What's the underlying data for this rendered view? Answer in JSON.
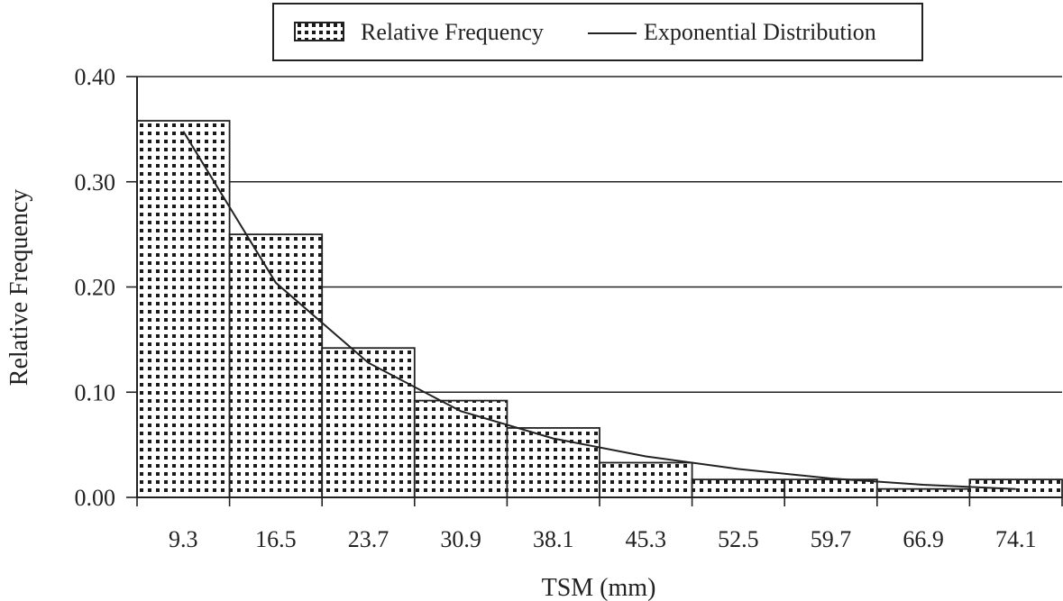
{
  "chart_data": {
    "type": "bar",
    "categories": [
      "9.3",
      "16.5",
      "23.7",
      "30.9",
      "38.1",
      "45.3",
      "52.5",
      "59.7",
      "66.9",
      "74.1"
    ],
    "series": [
      {
        "name": "Relative Frequency",
        "values": [
          0.358,
          0.25,
          0.142,
          0.092,
          0.066,
          0.033,
          0.017,
          0.017,
          0.008,
          0.017
        ]
      },
      {
        "name": "Exponential Distribution",
        "type": "line",
        "values": [
          0.348,
          0.204,
          0.128,
          0.082,
          0.056,
          0.039,
          0.027,
          0.018,
          0.012,
          0.008
        ]
      }
    ],
    "xlabel": "TSM (mm)",
    "ylabel": "Relative Frequency",
    "ylim": [
      0,
      0.4
    ],
    "yticks": [
      "0.00",
      "0.10",
      "0.20",
      "0.30",
      "0.40"
    ],
    "grid": true,
    "legend_position": "top-center",
    "bar_pattern": "dotted"
  }
}
